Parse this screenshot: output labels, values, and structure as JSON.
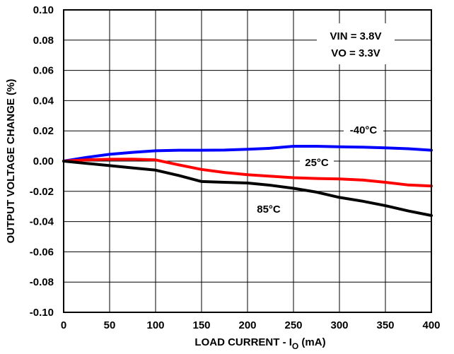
{
  "chart_data": {
    "type": "line",
    "xlabel": "LOAD CURRENT - IO (mA)",
    "xlabel_main": "LOAD CURRENT - I",
    "xlabel_sub": "O",
    "xlabel_tail": " (mA)",
    "ylabel": "OUTPUT VOLTAGE CHANGE (%)",
    "xlim": [
      0,
      400
    ],
    "ylim": [
      -0.1,
      0.1
    ],
    "x_ticks": [
      "0",
      "50",
      "100",
      "150",
      "200",
      "250",
      "300",
      "350",
      "400"
    ],
    "y_ticks": [
      "0.10",
      "0.08",
      "0.06",
      "0.04",
      "0.02",
      "0.00",
      "-0.02",
      "-0.04",
      "-0.06",
      "-0.08",
      "-0.10"
    ],
    "grid": true,
    "annotations": {
      "vin": "VIN = 3.8V",
      "vo": "VO = 3.3V"
    },
    "series": [
      {
        "name": "-40°C",
        "color": "#0000ff",
        "x": [
          0,
          25,
          50,
          75,
          100,
          125,
          150,
          175,
          200,
          225,
          250,
          275,
          300,
          325,
          350,
          375,
          400
        ],
        "y": [
          0.0,
          0.0025,
          0.0045,
          0.0058,
          0.0068,
          0.0072,
          0.0072,
          0.0073,
          0.0078,
          0.0085,
          0.0098,
          0.0098,
          0.0095,
          0.0092,
          0.0088,
          0.0082,
          0.0072
        ]
      },
      {
        "name": "25°C",
        "color": "#ff0000",
        "x": [
          0,
          25,
          50,
          75,
          100,
          125,
          150,
          175,
          200,
          225,
          250,
          275,
          300,
          325,
          350,
          375,
          400
        ],
        "y": [
          0.0,
          0.0008,
          0.0012,
          0.0013,
          0.0008,
          -0.0025,
          -0.0055,
          -0.0075,
          -0.009,
          -0.01,
          -0.011,
          -0.0115,
          -0.0118,
          -0.0125,
          -0.014,
          -0.0158,
          -0.0165
        ]
      },
      {
        "name": "85°C",
        "color": "#000000",
        "x": [
          0,
          25,
          50,
          75,
          100,
          125,
          150,
          175,
          200,
          225,
          250,
          275,
          300,
          325,
          350,
          375,
          400
        ],
        "y": [
          0.0,
          -0.0015,
          -0.003,
          -0.0045,
          -0.006,
          -0.0095,
          -0.0135,
          -0.014,
          -0.0145,
          -0.016,
          -0.018,
          -0.0205,
          -0.024,
          -0.0265,
          -0.0295,
          -0.033,
          -0.036
        ]
      }
    ],
    "series_labels": [
      "-40°C",
      "25°C",
      "85°C"
    ]
  }
}
